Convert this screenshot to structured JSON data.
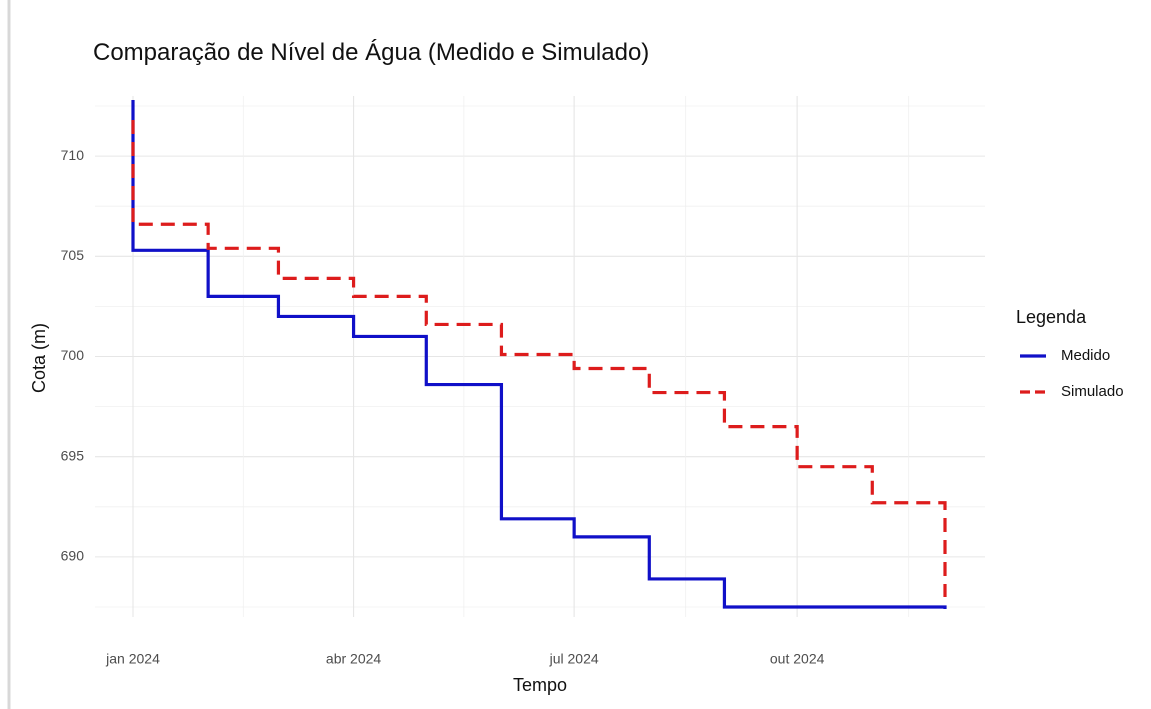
{
  "chart_data": {
    "type": "step",
    "title": "Comparação de Nível de Água (Medido e Simulado)",
    "x_label": "Tempo",
    "y_label": "Cota (m)",
    "legend_title": "Legenda",
    "legend_position": "right",
    "grid": true,
    "x": [
      "2024-01",
      "2024-01",
      "2024-02",
      "2024-03",
      "2024-04",
      "2024-05",
      "2024-06",
      "2024-07",
      "2024-08",
      "2024-09",
      "2024-10",
      "2024-11",
      "2024-12"
    ],
    "series": [
      {
        "name": "Medido",
        "color": "#1010c8",
        "dash": "solid",
        "values": [
          712.8,
          705.3,
          703.0,
          702.0,
          701.0,
          698.6,
          691.9,
          691.0,
          688.9,
          687.5,
          687.5,
          687.5,
          687.4
        ]
      },
      {
        "name": "Simulado",
        "color": "#dd1c1c",
        "dash": "dashed",
        "values": [
          711.8,
          706.6,
          705.4,
          703.9,
          703.0,
          701.6,
          700.1,
          699.4,
          698.2,
          696.5,
          694.5,
          692.7,
          688.0
        ]
      }
    ],
    "xticks": [
      {
        "value": "2024-01",
        "label": "jan 2024"
      },
      {
        "value": "2024-04",
        "label": "abr 2024"
      },
      {
        "value": "2024-07",
        "label": "jul 2024"
      },
      {
        "value": "2024-10",
        "label": "out 2024"
      }
    ],
    "ylim": [
      687,
      713
    ],
    "yticks": [
      690,
      695,
      700,
      705,
      710
    ]
  }
}
